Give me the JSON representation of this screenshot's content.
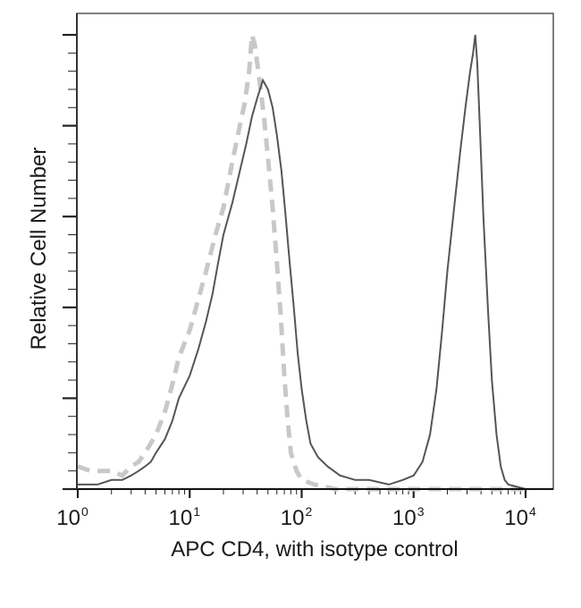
{
  "chart_data": {
    "type": "line",
    "subtype": "flow-cytometry-histogram",
    "title": "",
    "xlabel": "APC CD4, with isotype control",
    "ylabel": "Relative Cell Number",
    "x_scale": "log10",
    "xlim": [
      1,
      10000
    ],
    "x_ticks": [
      {
        "base": "10",
        "exp": "0",
        "value": 1
      },
      {
        "base": "10",
        "exp": "1",
        "value": 10
      },
      {
        "base": "10",
        "exp": "2",
        "value": 100
      },
      {
        "base": "10",
        "exp": "3",
        "value": 1000
      },
      {
        "base": "10",
        "exp": "4",
        "value": 10000
      }
    ],
    "ylim": [
      0,
      100
    ],
    "y_tick_labels_shown": false,
    "y_major_ticks": 6,
    "grid": false,
    "legend": null,
    "series": [
      {
        "name": "Isotype control",
        "style": "dashed",
        "color": "#c8c8c8",
        "peak_x": 35,
        "peak_y": 100,
        "points": [
          [
            1.0,
            5
          ],
          [
            1.3,
            4
          ],
          [
            1.6,
            4
          ],
          [
            2.0,
            4
          ],
          [
            2.5,
            3
          ],
          [
            3.0,
            5
          ],
          [
            3.5,
            6
          ],
          [
            4.0,
            8
          ],
          [
            5.0,
            12
          ],
          [
            6.0,
            17
          ],
          [
            7.0,
            23
          ],
          [
            8.0,
            29
          ],
          [
            10,
            35
          ],
          [
            12,
            42
          ],
          [
            14,
            48
          ],
          [
            17,
            56
          ],
          [
            20,
            62
          ],
          [
            24,
            72
          ],
          [
            28,
            80
          ],
          [
            31,
            85
          ],
          [
            34,
            92
          ],
          [
            36,
            100
          ],
          [
            38,
            98
          ],
          [
            42,
            90
          ],
          [
            46,
            82
          ],
          [
            50,
            73
          ],
          [
            55,
            62
          ],
          [
            60,
            50
          ],
          [
            65,
            38
          ],
          [
            70,
            25
          ],
          [
            75,
            15
          ],
          [
            80,
            8
          ],
          [
            90,
            4
          ],
          [
            100,
            2
          ],
          [
            130,
            1
          ],
          [
            200,
            0
          ],
          [
            400,
            0
          ],
          [
            1000,
            0
          ],
          [
            10000,
            0
          ]
        ]
      },
      {
        "name": "APC CD4",
        "style": "solid",
        "color": "#555555",
        "peaks": [
          {
            "x": 45,
            "y": 90
          },
          {
            "x": 3500,
            "y": 100
          }
        ],
        "points": [
          [
            1.0,
            1
          ],
          [
            1.5,
            1
          ],
          [
            2.0,
            2
          ],
          [
            2.5,
            2
          ],
          [
            3.0,
            3
          ],
          [
            3.5,
            4
          ],
          [
            4.0,
            5
          ],
          [
            4.5,
            6
          ],
          [
            5.0,
            8
          ],
          [
            6.0,
            11
          ],
          [
            7.0,
            15
          ],
          [
            8.0,
            20
          ],
          [
            10,
            25
          ],
          [
            12,
            31
          ],
          [
            14,
            37
          ],
          [
            16,
            43
          ],
          [
            18,
            50
          ],
          [
            20,
            56
          ],
          [
            24,
            63
          ],
          [
            28,
            70
          ],
          [
            32,
            76
          ],
          [
            36,
            82
          ],
          [
            40,
            86
          ],
          [
            45,
            90
          ],
          [
            50,
            88
          ],
          [
            55,
            84
          ],
          [
            60,
            78
          ],
          [
            66,
            70
          ],
          [
            72,
            60
          ],
          [
            78,
            50
          ],
          [
            85,
            40
          ],
          [
            92,
            30
          ],
          [
            100,
            22
          ],
          [
            110,
            15
          ],
          [
            120,
            10
          ],
          [
            140,
            7
          ],
          [
            170,
            5
          ],
          [
            220,
            3
          ],
          [
            300,
            2
          ],
          [
            400,
            2
          ],
          [
            600,
            1
          ],
          [
            800,
            2
          ],
          [
            1000,
            3
          ],
          [
            1200,
            6
          ],
          [
            1400,
            12
          ],
          [
            1600,
            22
          ],
          [
            1800,
            35
          ],
          [
            2000,
            48
          ],
          [
            2300,
            62
          ],
          [
            2600,
            74
          ],
          [
            2900,
            84
          ],
          [
            3200,
            92
          ],
          [
            3400,
            96
          ],
          [
            3550,
            100
          ],
          [
            3700,
            94
          ],
          [
            3900,
            80
          ],
          [
            4200,
            60
          ],
          [
            4600,
            40
          ],
          [
            5000,
            24
          ],
          [
            5500,
            12
          ],
          [
            6000,
            5
          ],
          [
            6500,
            2
          ],
          [
            7000,
            1
          ],
          [
            10000,
            0
          ]
        ]
      }
    ]
  }
}
